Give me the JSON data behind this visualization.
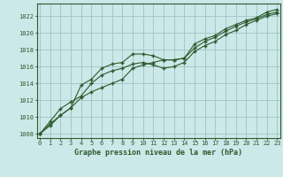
{
  "title": "Graphe pression niveau de la mer (hPa)",
  "xlim": [
    -0.3,
    23.3
  ],
  "ylim": [
    1007.5,
    1023.5
  ],
  "yticks": [
    1008,
    1010,
    1012,
    1014,
    1016,
    1018,
    1020,
    1022
  ],
  "xticks": [
    0,
    1,
    2,
    3,
    4,
    5,
    6,
    7,
    8,
    9,
    10,
    11,
    12,
    13,
    14,
    15,
    16,
    17,
    18,
    19,
    20,
    21,
    22,
    23
  ],
  "bg_color": "#cce8e8",
  "line_color": "#2d5a2d",
  "grid_color": "#9dc4c4",
  "lines": [
    [
      1008.0,
      1009.2,
      1010.2,
      1011.1,
      1013.8,
      1014.5,
      1015.8,
      1016.3,
      1016.5,
      1017.5,
      1017.5,
      1017.3,
      1016.8,
      1016.8,
      1017.0,
      1018.7,
      1019.3,
      1019.7,
      1020.5,
      1021.0,
      1021.5,
      1021.8,
      1022.5,
      1022.8
    ],
    [
      1008.0,
      1009.0,
      1010.2,
      1011.1,
      1012.3,
      1013.0,
      1013.5,
      1014.0,
      1014.5,
      1015.8,
      1016.2,
      1016.5,
      1016.8,
      1016.8,
      1017.0,
      1018.2,
      1019.0,
      1019.5,
      1020.2,
      1020.8,
      1021.3,
      1021.7,
      1022.2,
      1022.5
    ],
    [
      1008.0,
      1009.5,
      1011.0,
      1011.8,
      1012.5,
      1014.0,
      1015.0,
      1015.5,
      1015.8,
      1016.3,
      1016.5,
      1016.2,
      1015.8,
      1016.0,
      1016.5,
      1017.8,
      1018.5,
      1019.0,
      1019.8,
      1020.3,
      1021.0,
      1021.5,
      1022.0,
      1022.3
    ]
  ]
}
